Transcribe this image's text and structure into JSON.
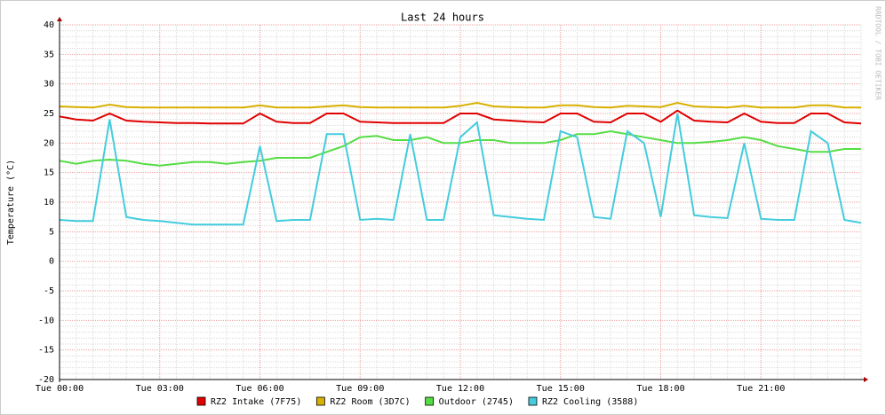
{
  "chart_data": {
    "type": "line",
    "title": "Last 24 hours",
    "y_label": "Temperature (°C)",
    "watermark": "RRDTOOL / TOBI OETIKER",
    "categories": [
      "Tue 00:00",
      null,
      null,
      null,
      null,
      null,
      "Tue 03:00",
      null,
      null,
      null,
      null,
      null,
      "Tue 06:00",
      null,
      null,
      null,
      null,
      null,
      "Tue 09:00",
      null,
      null,
      null,
      null,
      null,
      "Tue 12:00",
      null,
      null,
      null,
      null,
      null,
      "Tue 15:00",
      null,
      null,
      null,
      null,
      null,
      "Tue 18:00",
      null,
      null,
      null,
      null,
      null,
      "Tue 21:00",
      null,
      null,
      null,
      null,
      null,
      null
    ],
    "ylim": [
      -20,
      40
    ],
    "yticks": [
      -20,
      -15,
      -10,
      -5,
      0,
      5,
      10,
      15,
      20,
      25,
      30,
      35,
      40
    ],
    "grid": true,
    "series": [
      {
        "name": "RZ2 Intake (7F75)",
        "color": "#e00000",
        "values": [
          24.5,
          24,
          23.8,
          25,
          23.8,
          23.6,
          23.5,
          23.4,
          23.4,
          23.3,
          23.3,
          23.3,
          25,
          23.6,
          23.4,
          23.4,
          25,
          25,
          23.6,
          23.5,
          23.4,
          23.4,
          23.4,
          23.4,
          25,
          25,
          24,
          23.8,
          23.6,
          23.5,
          25,
          25,
          23.6,
          23.5,
          25,
          25,
          23.6,
          25.5,
          23.8,
          23.6,
          23.5,
          25,
          23.6,
          23.4,
          23.4,
          25,
          25,
          23.5,
          23.3
        ]
      },
      {
        "name": "RZ2 Room (3D7C)",
        "color": "#d8b000",
        "values": [
          26.2,
          26.1,
          26,
          26.5,
          26.1,
          26,
          26,
          26,
          26,
          26,
          26,
          26,
          26.4,
          26,
          26,
          26,
          26.2,
          26.4,
          26.1,
          26,
          26,
          26,
          26,
          26,
          26.3,
          26.8,
          26.2,
          26.1,
          26,
          26,
          26.4,
          26.4,
          26.1,
          26,
          26.3,
          26.2,
          26.1,
          26.8,
          26.2,
          26.1,
          26,
          26.3,
          26,
          26,
          26,
          26.4,
          26.4,
          26,
          26
        ]
      },
      {
        "name": "Outdoor (2745)",
        "color": "#55dd44",
        "values": [
          17,
          16.5,
          17,
          17.2,
          17,
          16.5,
          16.2,
          16.5,
          16.8,
          16.8,
          16.5,
          16.8,
          17,
          17.5,
          17.5,
          17.5,
          18.5,
          19.5,
          21,
          21.2,
          20.5,
          20.5,
          21,
          20,
          20,
          20.5,
          20.5,
          20,
          20,
          20,
          20.5,
          21.5,
          21.5,
          22,
          21.5,
          21,
          20.5,
          20,
          20,
          20.2,
          20.5,
          21,
          20.5,
          19.5,
          19,
          18.5,
          18.5,
          19,
          19
        ]
      },
      {
        "name": "RZ2 Cooling (3588)",
        "color": "#44ccdd",
        "values": [
          7,
          6.8,
          6.8,
          24,
          7.5,
          7,
          6.8,
          6.5,
          6.2,
          6.2,
          6.2,
          6.2,
          19.5,
          6.8,
          7,
          7,
          21.5,
          21.5,
          7,
          7.2,
          7,
          21.5,
          7,
          7,
          21,
          23.5,
          7.8,
          7.5,
          7.2,
          7,
          22,
          21,
          7.5,
          7.2,
          22,
          20,
          7.5,
          25,
          7.8,
          7.5,
          7.3,
          20,
          7.2,
          7,
          7,
          22,
          20,
          7,
          6.5
        ]
      }
    ]
  }
}
